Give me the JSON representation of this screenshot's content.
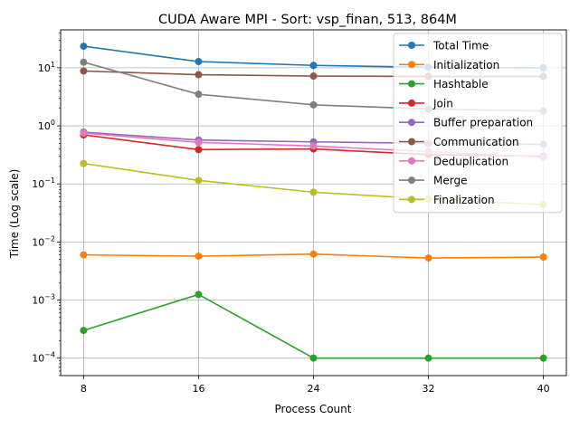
{
  "chart_data": {
    "type": "line",
    "title": "CUDA Aware MPI - Sort: vsp_finan, 513, 864M",
    "xlabel": "Process Count",
    "ylabel": "Time (Log scale)",
    "x": [
      8,
      16,
      24,
      32,
      40
    ],
    "xticks": [
      "8",
      "16",
      "24",
      "32",
      "40"
    ],
    "xlim": [
      6.4,
      41.6
    ],
    "yscale": "log",
    "ylim": [
      5e-05,
      45
    ],
    "yticks": [
      {
        "value": 0.0001,
        "base": "10",
        "exp": "−4"
      },
      {
        "value": 0.001,
        "base": "10",
        "exp": "−3"
      },
      {
        "value": 0.01,
        "base": "10",
        "exp": "−2"
      },
      {
        "value": 0.1,
        "base": "10",
        "exp": "−1"
      },
      {
        "value": 1,
        "base": "10",
        "exp": "0"
      },
      {
        "value": 10,
        "base": "10",
        "exp": "1"
      }
    ],
    "grid": true,
    "legend_position": "top-right",
    "series": [
      {
        "name": "Total Time",
        "color": "#1f77b4",
        "values": [
          23.5,
          12.8,
          11.0,
          10.2,
          10.0
        ]
      },
      {
        "name": "Initialization",
        "color": "#ff7f0e",
        "values": [
          0.006,
          0.0057,
          0.0062,
          0.0053,
          0.0055
        ]
      },
      {
        "name": "Hashtable",
        "color": "#2ca02c",
        "values": [
          0.0003,
          0.00125,
          0.0001,
          0.0001,
          0.0001
        ]
      },
      {
        "name": "Join",
        "color": "#d62728",
        "values": [
          0.7,
          0.39,
          0.4,
          0.32,
          0.3
        ]
      },
      {
        "name": "Buffer preparation",
        "color": "#9467bd",
        "values": [
          0.78,
          0.57,
          0.53,
          0.5,
          0.48
        ]
      },
      {
        "name": "Communication",
        "color": "#8c564b",
        "values": [
          8.8,
          7.6,
          7.2,
          7.1,
          7.1
        ]
      },
      {
        "name": "Deduplication",
        "color": "#e377c2",
        "values": [
          0.75,
          0.52,
          0.45,
          0.36,
          0.29
        ]
      },
      {
        "name": "Merge",
        "color": "#7f7f7f",
        "values": [
          12.5,
          3.5,
          2.3,
          1.95,
          1.8
        ]
      },
      {
        "name": "Finalization",
        "color": "#bcbd22",
        "values": [
          0.225,
          0.115,
          0.072,
          0.055,
          0.044
        ]
      }
    ]
  }
}
